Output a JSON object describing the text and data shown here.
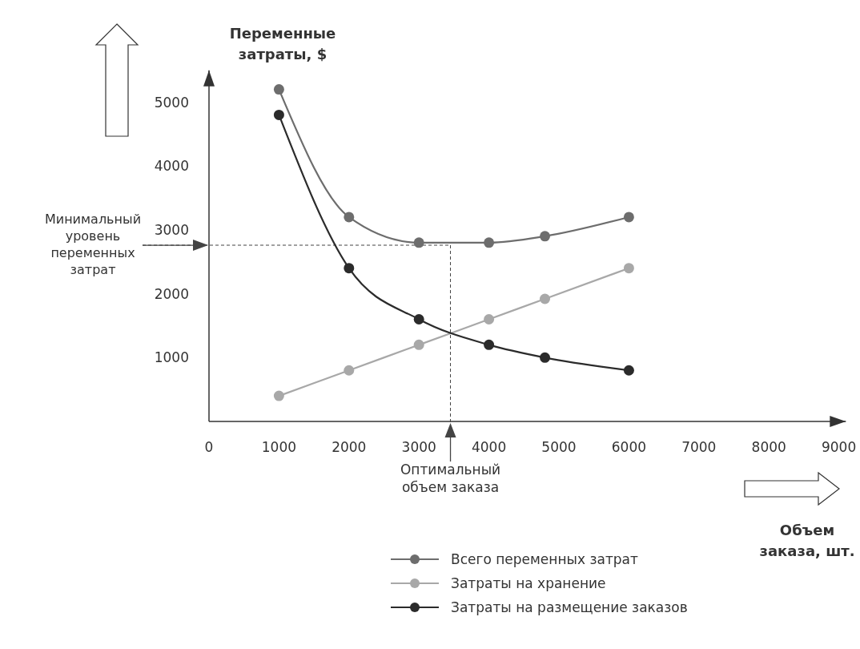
{
  "chart_data": {
    "type": "line",
    "xlabel": "Объем заказа, шт.",
    "ylabel": "Переменные затраты, $",
    "xlim": [
      0,
      9100
    ],
    "xticks": [
      0,
      1000,
      2000,
      3000,
      4000,
      5000,
      6000,
      7000,
      8000,
      9000
    ],
    "ylim": [
      0,
      5500
    ],
    "yticks": [
      1000,
      2000,
      3000,
      4000,
      5000
    ],
    "x": [
      1000,
      2000,
      3000,
      4000,
      4800,
      6000
    ],
    "series": [
      {
        "name": "Всего переменных затрат",
        "color": "#6d6d6d",
        "values": [
          5200,
          3200,
          2800,
          2800,
          2900,
          3200
        ]
      },
      {
        "name": "Затраты на хранение",
        "color": "#a8a8a8",
        "values": [
          400,
          800,
          1200,
          1600,
          1920,
          2400
        ]
      },
      {
        "name": "Затраты на размещение заказов",
        "color": "#2b2b2b",
        "values": [
          4800,
          2400,
          1600,
          1200,
          1000,
          800
        ]
      }
    ],
    "ref_lines": [
      {
        "axis": "y",
        "value": 2760,
        "label": "Минимальный уровень переменных затрат",
        "color": "#444444",
        "line_style": "dashed"
      },
      {
        "axis": "x",
        "value": 3450,
        "label": "Оптимальный объем заказа",
        "color": "#444444",
        "line_style": "dashed"
      }
    ],
    "marker": "circle",
    "line_style": "solid",
    "grid": false,
    "legend": "bottom"
  }
}
